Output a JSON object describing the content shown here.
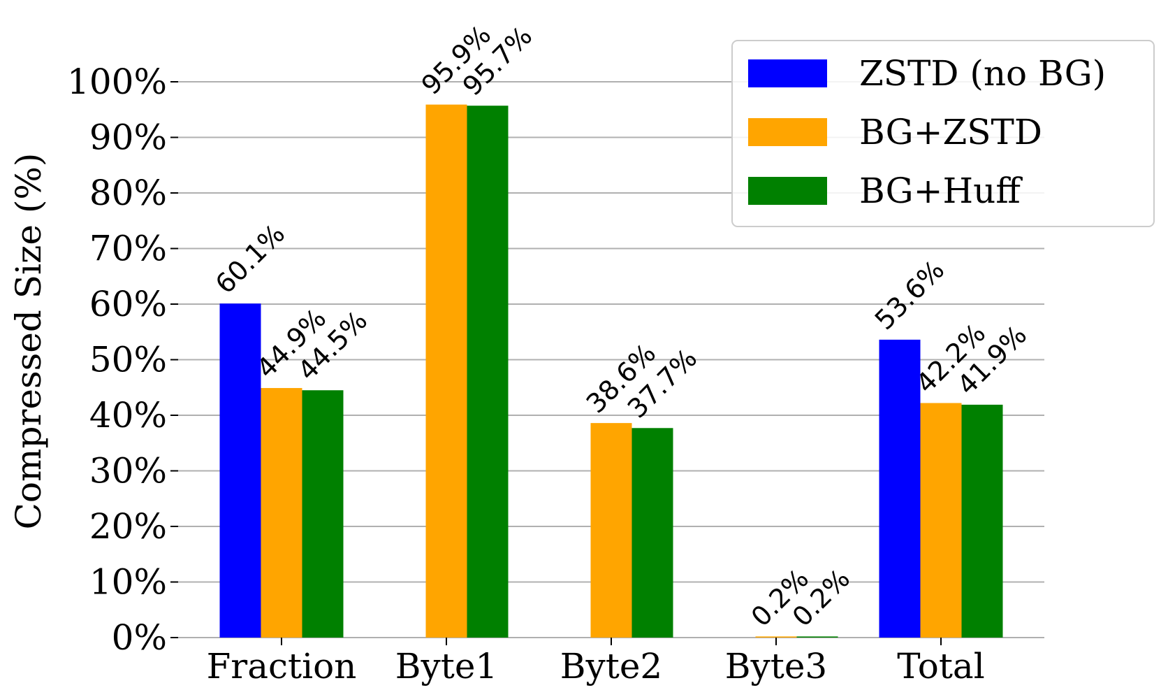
{
  "chart_data": {
    "type": "bar",
    "title": "",
    "xlabel": "",
    "ylabel": "Compressed Size (%)",
    "ylim": [
      0,
      100
    ],
    "yticks": [
      0,
      10,
      20,
      30,
      40,
      50,
      60,
      70,
      80,
      90,
      100
    ],
    "ytick_labels": [
      "0%",
      "10%",
      "20%",
      "30%",
      "40%",
      "50%",
      "60%",
      "70%",
      "80%",
      "90%",
      "100%"
    ],
    "grid": "horizontal",
    "legend_position": "top-right",
    "categories": [
      "Fraction",
      "Byte1",
      "Byte2",
      "Byte3",
      "Total"
    ],
    "series": [
      {
        "name": "ZSTD (no BG)",
        "color": "#0000ff",
        "values": [
          60.1,
          null,
          null,
          null,
          53.6
        ],
        "labels": [
          "60.1%",
          null,
          null,
          null,
          "53.6%"
        ]
      },
      {
        "name": "BG+ZSTD",
        "color": "#ffa500",
        "values": [
          44.9,
          95.9,
          38.6,
          0.2,
          42.2
        ],
        "labels": [
          "44.9%",
          "95.9%",
          "38.6%",
          "0.2%",
          "42.2%"
        ]
      },
      {
        "name": "BG+Huff",
        "color": "#008000",
        "values": [
          44.5,
          95.7,
          37.7,
          0.2,
          41.9
        ],
        "labels": [
          "44.5%",
          "95.7%",
          "37.7%",
          "0.2%",
          "41.9%"
        ]
      }
    ]
  }
}
